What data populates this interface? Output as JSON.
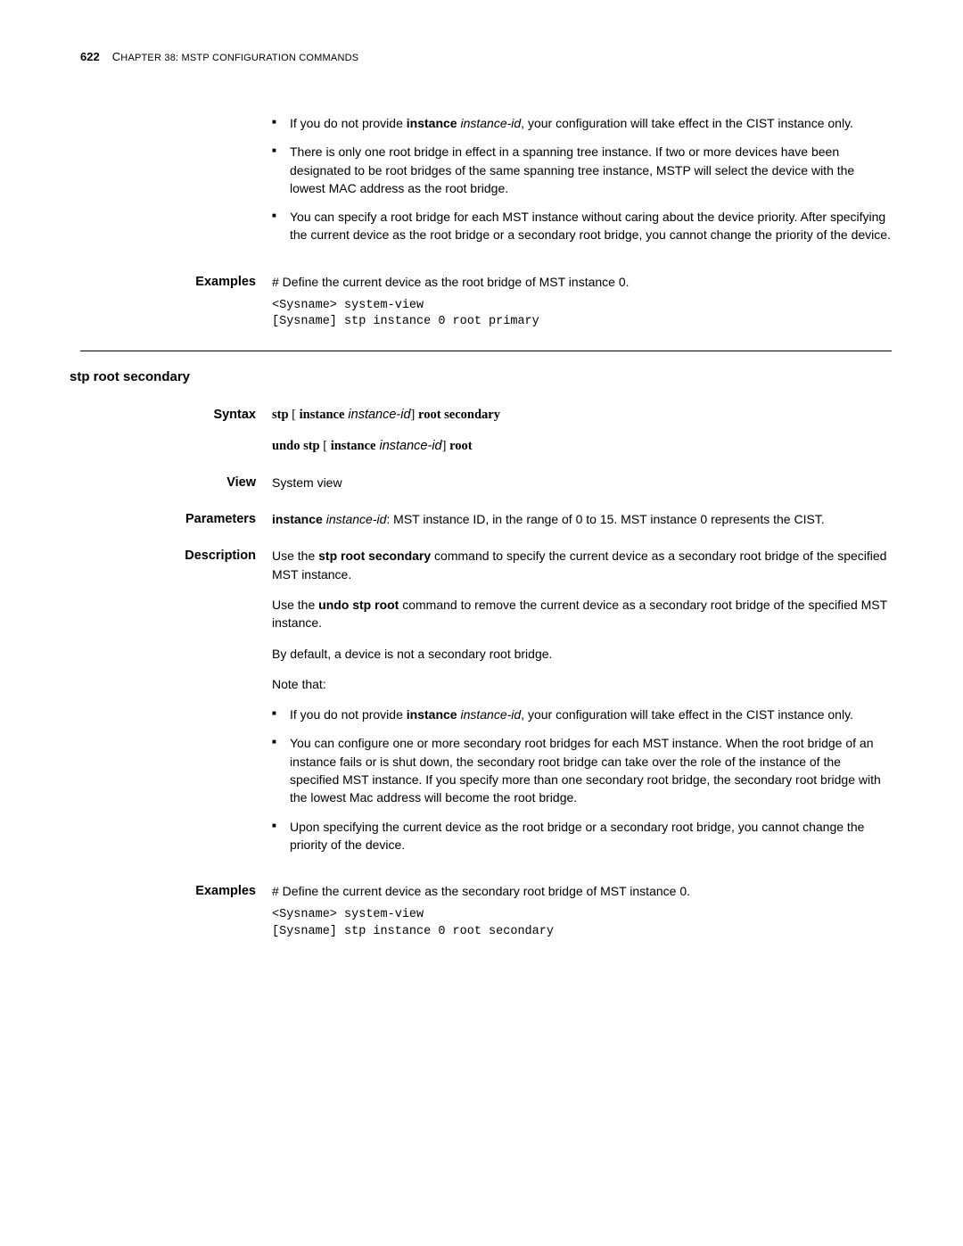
{
  "header": {
    "page_number": "622",
    "chapter_prefix": "C",
    "chapter_rest": "HAPTER",
    "chapter_num": " 38: MSTP C",
    "chapter_rest2": "ONFIGURATION",
    "chapter_rest3": " C",
    "chapter_rest4": "OMMANDS"
  },
  "top_notes": {
    "li1a": "If you do not provide ",
    "li1b": "instance",
    "li1c": " instance-id",
    "li1d": ", your configuration will take effect in the CIST instance only.",
    "li2": "There is only one root bridge in effect in a spanning tree instance. If two or more devices have been designated to be root bridges of the same spanning tree instance, MSTP will select the device with the lowest MAC address as the root bridge.",
    "li3": "You can specify a root bridge for each MST instance without caring about the device priority. After specifying the current device as the root bridge or a secondary root bridge, you cannot change the priority of the device."
  },
  "examples1": {
    "label": "Examples",
    "text": "# Define the current device as the root bridge of MST instance 0.",
    "code": "<Sysname> system-view\n[Sysname] stp instance 0 root primary"
  },
  "section2": {
    "title": "stp root secondary",
    "syntax_label": "Syntax",
    "syntax_line1_kw1": "stp",
    "syntax_line1_br1": " [ ",
    "syntax_line1_kw2": "instance",
    "syntax_line1_arg": " instance-id",
    "syntax_line1_br2": "] ",
    "syntax_line1_kw3": "root secondary",
    "syntax_line2_kw1": "undo stp",
    "syntax_line2_br1": " [ ",
    "syntax_line2_kw2": "instance",
    "syntax_line2_arg": " instance-id",
    "syntax_line2_br2": "] ",
    "syntax_line2_kw3": "root",
    "view_label": "View",
    "view_text": "System view",
    "params_label": "Parameters",
    "params_kw": "instance",
    "params_arg": " instance-id",
    "params_text": ": MST instance ID, in the range of 0 to 15. MST instance 0 represents the CIST.",
    "desc_label": "Description",
    "desc_p1a": "Use the ",
    "desc_p1b": "stp root secondary",
    "desc_p1c": " command to specify the current device as a secondary root bridge of the specified MST instance.",
    "desc_p2a": "Use the ",
    "desc_p2b": "undo stp root",
    "desc_p2c": " command to remove the current device as a secondary root bridge of the specified MST instance.",
    "desc_p3": "By default, a device is not a secondary root bridge.",
    "desc_p4": "Note that:",
    "desc_li1a": "If you do not provide ",
    "desc_li1b": "instance",
    "desc_li1c": " instance-id",
    "desc_li1d": ", your configuration will take effect in the CIST instance only.",
    "desc_li2": "You can configure one or more secondary root bridges for each MST instance. When the root bridge of an instance fails or is shut down, the secondary root bridge can take over the role of the instance of the specified MST instance. If you specify more than one secondary root bridge, the secondary root bridge with the lowest Mac address will become the root bridge.",
    "desc_li3": "Upon specifying the current device as the root bridge or a secondary root bridge, you cannot change the priority of the device.",
    "ex2_label": "Examples",
    "ex2_text": "# Define the current device as the secondary root bridge of MST instance 0.",
    "ex2_code": "<Sysname> system-view\n[Sysname] stp instance 0 root secondary"
  }
}
